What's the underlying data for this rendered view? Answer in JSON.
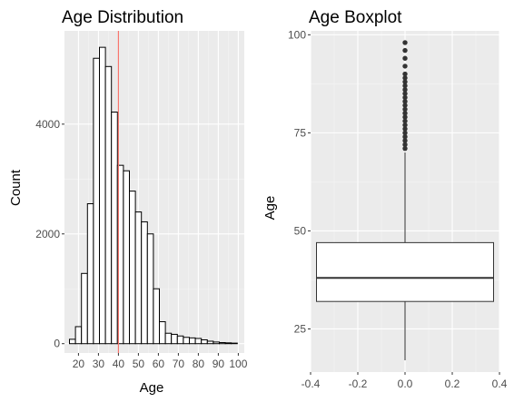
{
  "colors": {
    "panel_background": "#ebebeb",
    "grid_major": "#ffffff",
    "grid_minor": "#f5f5f5",
    "bar_fill": "#ffffff",
    "bar_outline": "#000000",
    "reference_line": "#f8766d",
    "outlier_points": "#333333",
    "tick_text": "#4d4d4d"
  },
  "chart_data": [
    {
      "type": "bar",
      "subtype": "histogram",
      "title": "Age Distribution",
      "xlabel": "Age",
      "ylabel": "Count",
      "xlim": [
        13,
        103
      ],
      "ylim": [
        -170,
        5700
      ],
      "xticks": [
        20,
        30,
        40,
        50,
        60,
        70,
        80,
        90,
        100
      ],
      "xtick_labels": [
        "20",
        "30",
        "40",
        "50",
        "60",
        "70",
        "80",
        "90",
        "100"
      ],
      "yticks": [
        0,
        2000,
        4000
      ],
      "ytick_labels": [
        "0",
        "2000",
        "4000"
      ],
      "binwidth": 3,
      "bin_centers": [
        17,
        20,
        23,
        26,
        29,
        32,
        35,
        38,
        41,
        44,
        47,
        50,
        53,
        56,
        59,
        62,
        65,
        68,
        71,
        74,
        77,
        80,
        83,
        86,
        89,
        92,
        95,
        98
      ],
      "counts": [
        80,
        310,
        1280,
        2550,
        5200,
        5400,
        5050,
        4220,
        3250,
        3150,
        2780,
        2400,
        2220,
        2000,
        1000,
        400,
        190,
        170,
        140,
        115,
        105,
        95,
        70,
        45,
        30,
        20,
        15,
        10
      ],
      "vline": {
        "x": 40,
        "color": "#f8766d"
      },
      "grid": true
    },
    {
      "type": "boxplot",
      "title": "Age Boxplot",
      "xlabel": "",
      "ylabel": "Age",
      "xlim": [
        -0.4,
        0.4
      ],
      "ylim": [
        14,
        101
      ],
      "xticks": [
        -0.4,
        -0.2,
        0.0,
        0.2,
        0.4
      ],
      "xtick_labels": [
        "-0.4",
        "-0.2",
        "0.0",
        "0.2",
        "0.4"
      ],
      "yticks": [
        25,
        50,
        75,
        100
      ],
      "ytick_labels": [
        "25",
        "50",
        "75",
        "100"
      ],
      "box": {
        "x_left": -0.375,
        "x_right": 0.375,
        "q1": 32,
        "median": 38,
        "q3": 47,
        "whisker_low": 17,
        "whisker_high": 70
      },
      "outliers": [
        71,
        72,
        73,
        74,
        75,
        76,
        77,
        78,
        79,
        80,
        81,
        82,
        83,
        84,
        85,
        86,
        87,
        88,
        89,
        90,
        92,
        94,
        96,
        98
      ],
      "grid": true
    }
  ]
}
